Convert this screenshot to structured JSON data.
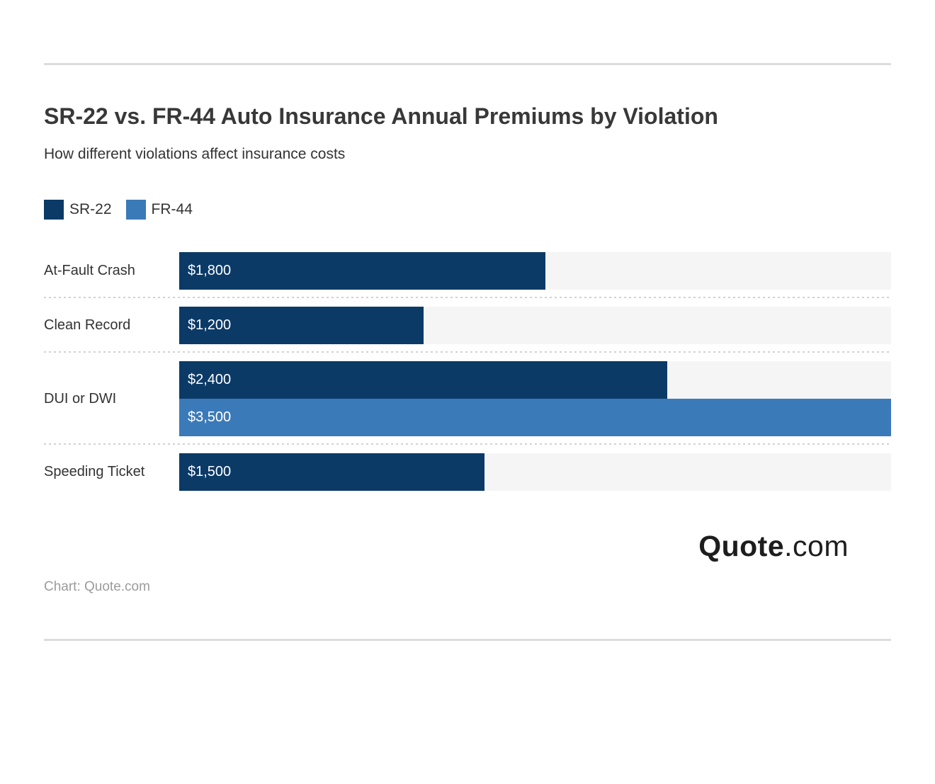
{
  "header": {
    "title": "SR-22 vs. FR-44 Auto Insurance Annual Premiums by Violation",
    "subtitle": "How different violations affect insurance costs"
  },
  "legend": {
    "items": [
      {
        "label": "SR-22",
        "color": "#0b3a67"
      },
      {
        "label": "FR-44",
        "color": "#3b7ab8"
      }
    ]
  },
  "chart_data": {
    "type": "bar",
    "orientation": "horizontal",
    "title": "SR-22 vs. FR-44 Auto Insurance Annual Premiums by Violation",
    "subtitle": "How different violations affect insurance costs",
    "categories": [
      "At-Fault Crash",
      "Clean Record",
      "DUI or DWI",
      "Speeding Ticket"
    ],
    "series": [
      {
        "name": "SR-22",
        "color": "#0b3a67",
        "values": [
          1800,
          1200,
          2400,
          1500
        ],
        "display": [
          "$1,800",
          "$1,200",
          "$2,400",
          "$1,500"
        ]
      },
      {
        "name": "FR-44",
        "color": "#3b7ab8",
        "values": [
          null,
          null,
          3500,
          null
        ],
        "display": [
          null,
          null,
          "$3,500",
          null
        ]
      }
    ],
    "xlim": [
      0,
      3500
    ],
    "grid": false,
    "legend_position": "top-left",
    "track_color": "#f5f5f5",
    "value_labels_inside_bars": true
  },
  "footer": {
    "logo": {
      "bold": "Quote",
      "light": ".com"
    },
    "caption": "Chart: Quote.com"
  }
}
